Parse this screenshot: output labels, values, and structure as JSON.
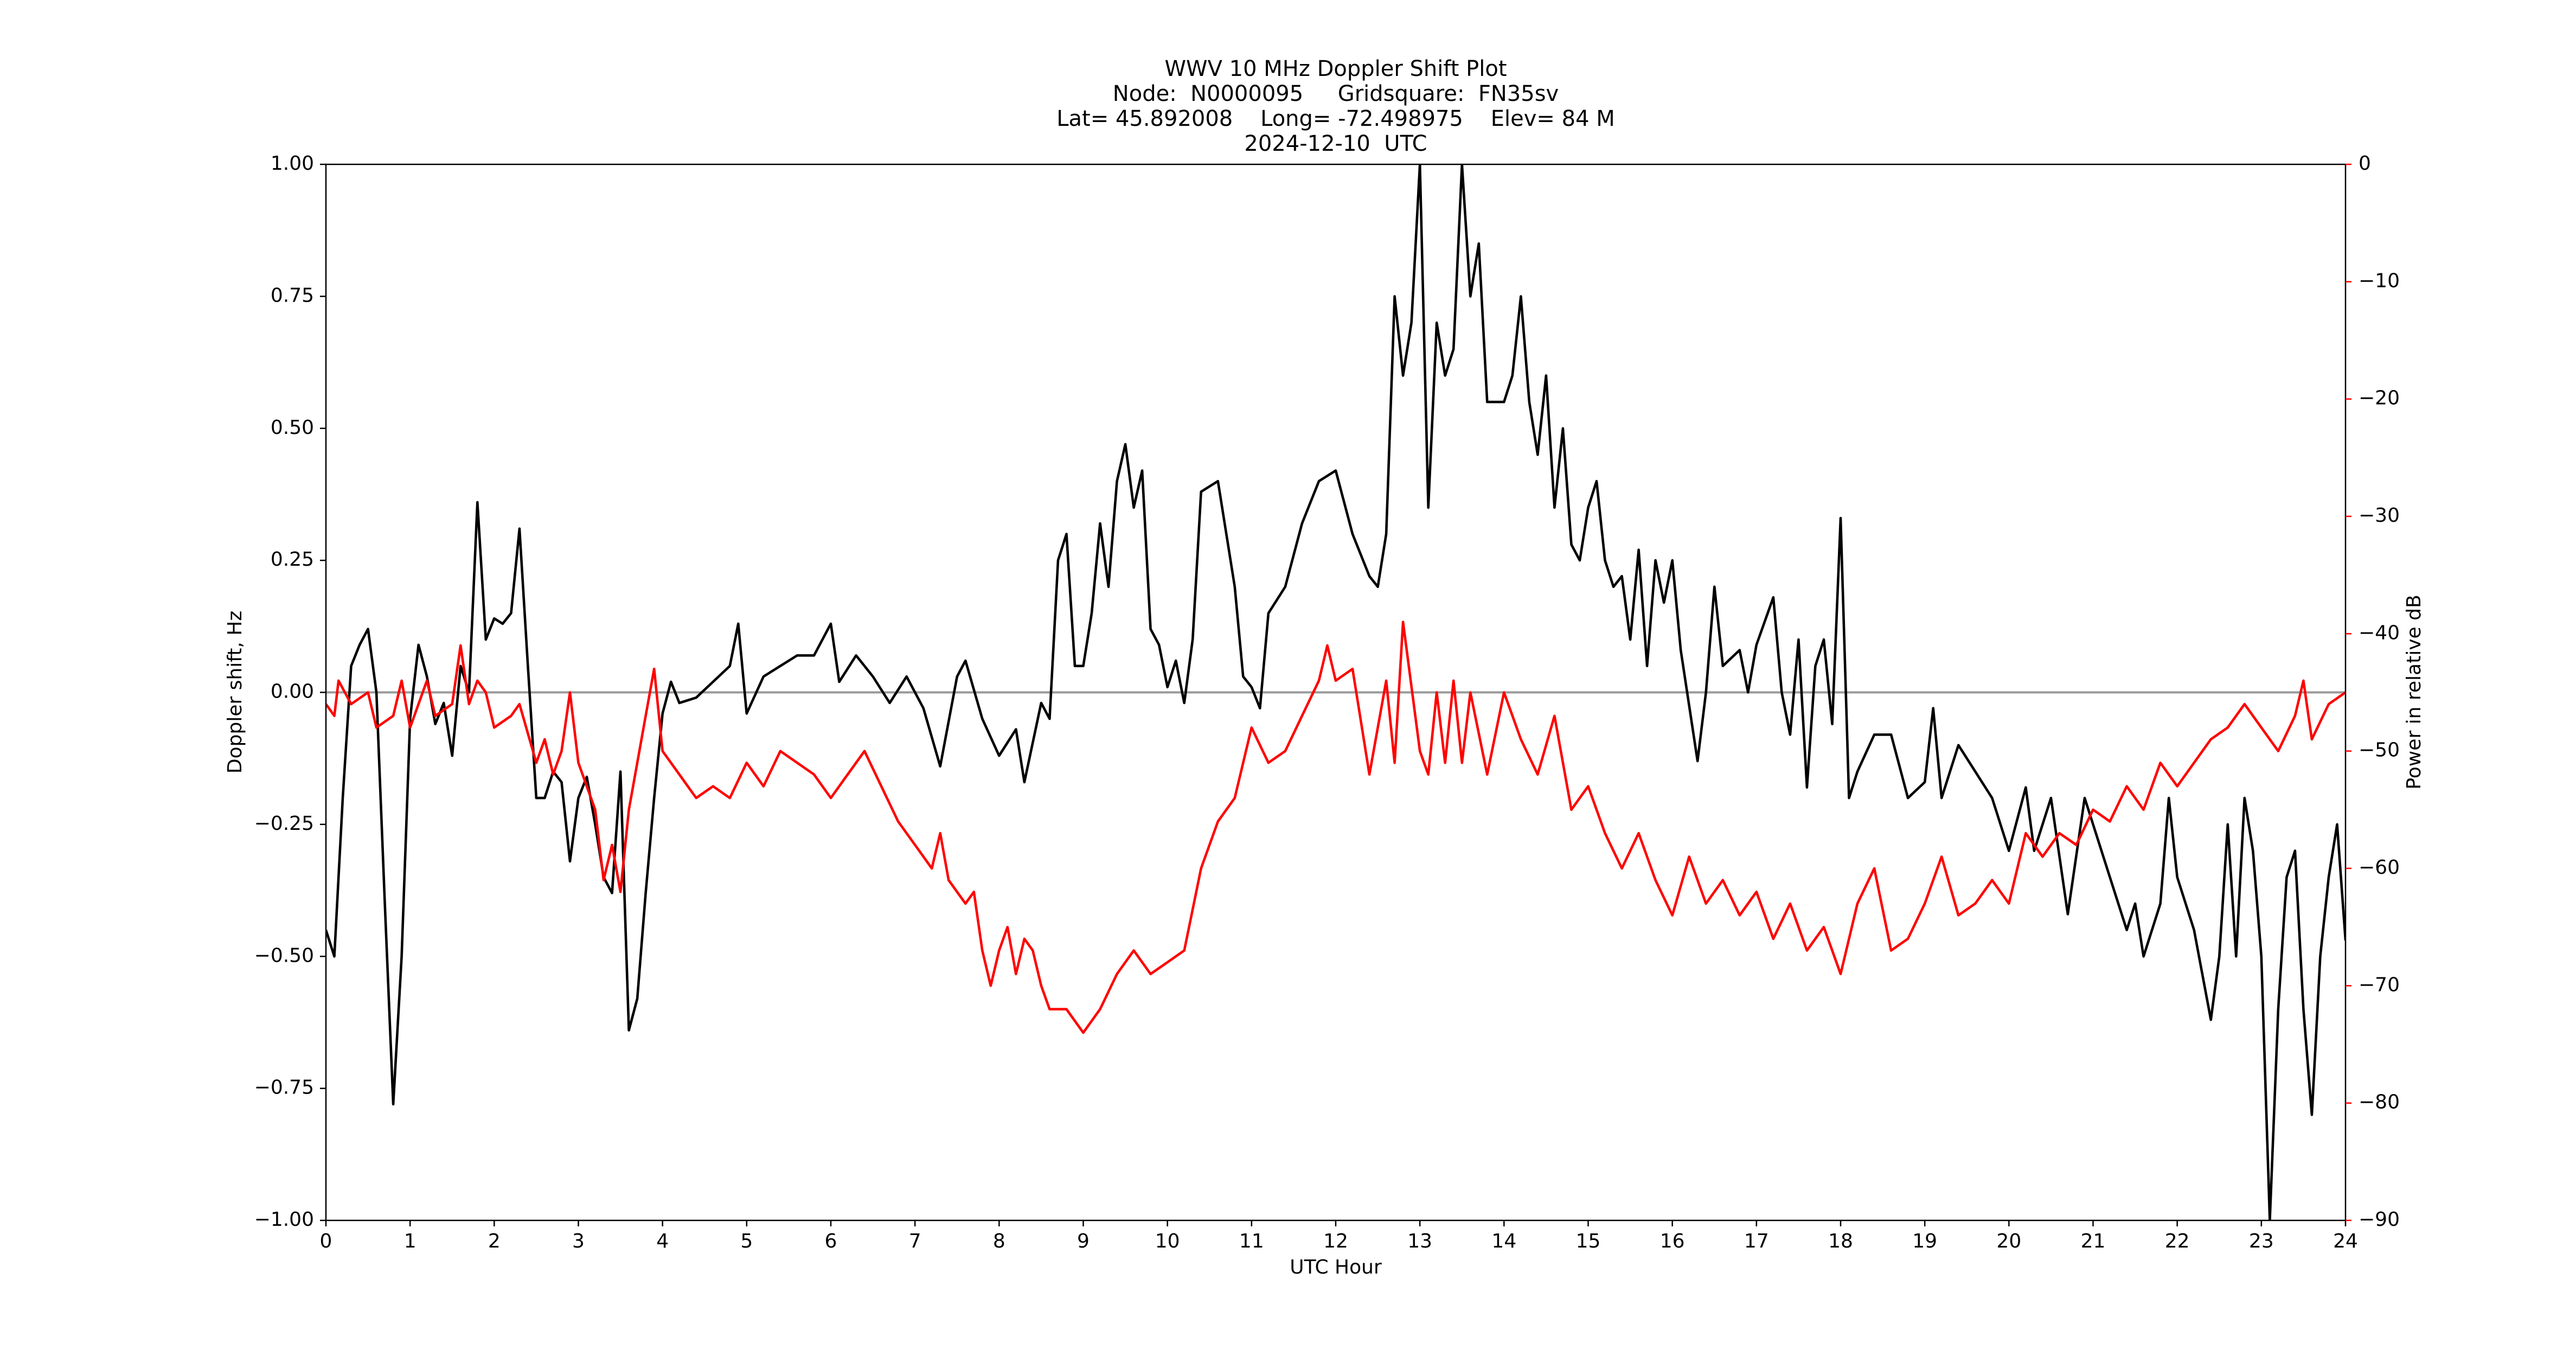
{
  "chart_data": {
    "type": "line",
    "title": [
      "WWV 10 MHz Doppler Shift Plot",
      "Node:  N0000095     Gridsquare:  FN35sv",
      "Lat= 45.892008    Long= -72.498975    Elev= 84 M",
      "2024-12-10  UTC"
    ],
    "xlabel": "UTC Hour",
    "ylabel": "Doppler shift, Hz",
    "y2label": "Power in relative dB",
    "xlim": [
      0,
      24
    ],
    "xticks": [
      0,
      1,
      2,
      3,
      4,
      5,
      6,
      7,
      8,
      9,
      10,
      11,
      12,
      13,
      14,
      15,
      16,
      17,
      18,
      19,
      20,
      21,
      22,
      23,
      24
    ],
    "ylim": [
      -1,
      1
    ],
    "yticks": [
      {
        "value": -1,
        "label": "−1.00"
      },
      {
        "value": -0.75,
        "label": "−0.75"
      },
      {
        "value": -0.5,
        "label": "−0.50"
      },
      {
        "value": -0.25,
        "label": "−0.25"
      },
      {
        "value": 0,
        "label": "0.00"
      },
      {
        "value": 0.25,
        "label": "0.25"
      },
      {
        "value": 0.5,
        "label": "0.50"
      },
      {
        "value": 0.75,
        "label": "0.75"
      },
      {
        "value": 1,
        "label": "1.00"
      }
    ],
    "y2lim": [
      -90,
      0
    ],
    "y2ticks": [
      {
        "value": -90,
        "label": "−90"
      },
      {
        "value": -80,
        "label": "−80"
      },
      {
        "value": -70,
        "label": "−70"
      },
      {
        "value": -60,
        "label": "−60"
      },
      {
        "value": -50,
        "label": "−50"
      },
      {
        "value": -40,
        "label": "−40"
      },
      {
        "value": -30,
        "label": "−30"
      },
      {
        "value": -20,
        "label": "−20"
      },
      {
        "value": -10,
        "label": "−10"
      },
      0
    ],
    "y2color": "#ff0000",
    "hline": 0,
    "hline_color": "#999999",
    "series": [
      {
        "color": "#000000",
        "axis": "y",
        "x": [
          0,
          0.1,
          0.2,
          0.3,
          0.4,
          0.5,
          0.6,
          0.7,
          0.8,
          0.9,
          1.0,
          1.1,
          1.2,
          1.3,
          1.4,
          1.5,
          1.6,
          1.7,
          1.8,
          1.9,
          2.0,
          2.1,
          2.2,
          2.3,
          2.4,
          2.5,
          2.6,
          2.7,
          2.8,
          2.9,
          3.0,
          3.1,
          3.2,
          3.3,
          3.4,
          3.5,
          3.6,
          3.7,
          3.8,
          3.9,
          4.0,
          4.1,
          4.2,
          4.4,
          4.6,
          4.8,
          4.9,
          5.0,
          5.2,
          5.4,
          5.6,
          5.8,
          6.0,
          6.1,
          6.3,
          6.5,
          6.7,
          6.9,
          7.1,
          7.3,
          7.5,
          7.6,
          7.8,
          8.0,
          8.2,
          8.3,
          8.5,
          8.6,
          8.7,
          8.8,
          8.9,
          9.0,
          9.1,
          9.2,
          9.3,
          9.4,
          9.5,
          9.6,
          9.7,
          9.8,
          9.9,
          10.0,
          10.1,
          10.2,
          10.3,
          10.4,
          10.6,
          10.8,
          10.9,
          11.0,
          11.1,
          11.2,
          11.4,
          11.6,
          11.8,
          12.0,
          12.2,
          12.4,
          12.5,
          12.6,
          12.7,
          12.8,
          12.9,
          13.0,
          13.1,
          13.2,
          13.3,
          13.4,
          13.5,
          13.6,
          13.7,
          13.8,
          13.9,
          14.0,
          14.1,
          14.2,
          14.3,
          14.4,
          14.5,
          14.6,
          14.7,
          14.8,
          14.9,
          15.0,
          15.1,
          15.2,
          15.3,
          15.4,
          15.5,
          15.6,
          15.7,
          15.8,
          15.9,
          16.0,
          16.1,
          16.3,
          16.4,
          16.5,
          16.6,
          16.8,
          16.9,
          17.0,
          17.2,
          17.3,
          17.4,
          17.5,
          17.6,
          17.7,
          17.8,
          17.9,
          18.0,
          18.1,
          18.2,
          18.4,
          18.6,
          18.8,
          19.0,
          19.1,
          19.2,
          19.4,
          19.6,
          19.8,
          20.0,
          20.2,
          20.3,
          20.5,
          20.7,
          20.9,
          21.0,
          21.2,
          21.4,
          21.5,
          21.6,
          21.8,
          21.9,
          22.0,
          22.2,
          22.4,
          22.5,
          22.6,
          22.7,
          22.8,
          22.9,
          23.0,
          23.1,
          23.2,
          23.3,
          23.4,
          23.5,
          23.6,
          23.7,
          23.8,
          23.9,
          24.0
        ],
        "values": [
          -0.45,
          -0.5,
          -0.2,
          0.05,
          0.09,
          0.12,
          0.0,
          -0.4,
          -0.78,
          -0.5,
          -0.05,
          0.09,
          0.03,
          -0.06,
          -0.02,
          -0.12,
          0.05,
          0.0,
          0.36,
          0.1,
          0.14,
          0.13,
          0.15,
          0.31,
          0.05,
          -0.2,
          -0.2,
          -0.15,
          -0.17,
          -0.32,
          -0.2,
          -0.16,
          -0.25,
          -0.35,
          -0.38,
          -0.15,
          -0.64,
          -0.58,
          -0.38,
          -0.2,
          -0.04,
          0.02,
          -0.02,
          -0.01,
          0.02,
          0.05,
          0.13,
          -0.04,
          0.03,
          0.05,
          0.07,
          0.07,
          0.13,
          0.02,
          0.07,
          0.03,
          -0.02,
          0.03,
          -0.03,
          -0.14,
          0.03,
          0.06,
          -0.05,
          -0.12,
          -0.07,
          -0.17,
          -0.02,
          -0.05,
          0.25,
          0.3,
          0.05,
          0.05,
          0.15,
          0.32,
          0.2,
          0.4,
          0.47,
          0.35,
          0.42,
          0.12,
          0.09,
          0.01,
          0.06,
          -0.02,
          0.1,
          0.38,
          0.4,
          0.2,
          0.03,
          0.01,
          -0.03,
          0.15,
          0.2,
          0.32,
          0.4,
          0.42,
          0.3,
          0.22,
          0.2,
          0.3,
          0.75,
          0.6,
          0.7,
          1.0,
          0.35,
          0.7,
          0.6,
          0.65,
          1.0,
          0.75,
          0.85,
          0.55,
          0.55,
          0.55,
          0.6,
          0.75,
          0.55,
          0.45,
          0.6,
          0.35,
          0.5,
          0.28,
          0.25,
          0.35,
          0.4,
          0.25,
          0.2,
          0.22,
          0.1,
          0.27,
          0.05,
          0.25,
          0.17,
          0.25,
          0.08,
          -0.13,
          0.0,
          0.2,
          0.05,
          0.08,
          0.0,
          0.09,
          0.18,
          0.0,
          -0.08,
          0.1,
          -0.18,
          0.05,
          0.1,
          -0.06,
          0.33,
          -0.2,
          -0.15,
          -0.08,
          -0.08,
          -0.2,
          -0.17,
          -0.03,
          -0.2,
          -0.1,
          -0.15,
          -0.2,
          -0.3,
          -0.18,
          -0.3,
          -0.2,
          -0.42,
          -0.2,
          -0.25,
          -0.35,
          -0.45,
          -0.4,
          -0.5,
          -0.4,
          -0.2,
          -0.35,
          -0.45,
          -0.62,
          -0.5,
          -0.25,
          -0.5,
          -0.2,
          -0.3,
          -0.5,
          -1.0,
          -0.6,
          -0.35,
          -0.3,
          -0.6,
          -0.8,
          -0.5,
          -0.35,
          -0.25,
          -0.47
        ]
      },
      {
        "color": "#ff0000",
        "axis": "y2",
        "x": [
          0,
          0.1,
          0.15,
          0.3,
          0.5,
          0.6,
          0.8,
          0.9,
          1.0,
          1.1,
          1.2,
          1.3,
          1.5,
          1.6,
          1.7,
          1.8,
          1.9,
          2.0,
          2.2,
          2.3,
          2.5,
          2.6,
          2.7,
          2.8,
          2.9,
          3.0,
          3.2,
          3.3,
          3.4,
          3.5,
          3.6,
          3.8,
          3.9,
          4.0,
          4.2,
          4.4,
          4.6,
          4.8,
          5.0,
          5.2,
          5.4,
          5.6,
          5.8,
          6.0,
          6.2,
          6.4,
          6.6,
          6.8,
          7.0,
          7.2,
          7.3,
          7.4,
          7.6,
          7.7,
          7.8,
          7.9,
          8.0,
          8.1,
          8.2,
          8.3,
          8.4,
          8.5,
          8.6,
          8.8,
          9.0,
          9.1,
          9.2,
          9.4,
          9.6,
          9.8,
          10.0,
          10.2,
          10.4,
          10.6,
          10.8,
          11.0,
          11.2,
          11.4,
          11.6,
          11.8,
          11.9,
          12.0,
          12.2,
          12.4,
          12.5,
          12.6,
          12.7,
          12.8,
          13.0,
          13.1,
          13.2,
          13.3,
          13.4,
          13.5,
          13.6,
          13.8,
          14.0,
          14.2,
          14.4,
          14.6,
          14.8,
          15.0,
          15.2,
          15.4,
          15.6,
          15.8,
          16.0,
          16.2,
          16.4,
          16.6,
          16.8,
          17.0,
          17.2,
          17.4,
          17.6,
          17.8,
          18.0,
          18.2,
          18.4,
          18.6,
          18.8,
          19.0,
          19.2,
          19.4,
          19.6,
          19.8,
          20.0,
          20.2,
          20.4,
          20.6,
          20.8,
          21.0,
          21.2,
          21.4,
          21.6,
          21.8,
          22.0,
          22.2,
          22.4,
          22.6,
          22.8,
          23.0,
          23.2,
          23.4,
          23.5,
          23.6,
          23.8,
          24.0
        ],
        "values": [
          -46,
          -47,
          -44,
          -46,
          -45,
          -48,
          -47,
          -44,
          -48,
          -46,
          -44,
          -47,
          -46,
          -41,
          -46,
          -44,
          -45,
          -48,
          -47,
          -46,
          -51,
          -49,
          -52,
          -50,
          -45,
          -51,
          -55,
          -61,
          -58,
          -62,
          -55,
          -47,
          -43,
          -50,
          -52,
          -54,
          -53,
          -54,
          -51,
          -53,
          -50,
          -51,
          -52,
          -54,
          -52,
          -50,
          -53,
          -56,
          -58,
          -60,
          -57,
          -61,
          -63,
          -62,
          -67,
          -70,
          -67,
          -65,
          -69,
          -66,
          -67,
          -70,
          -72,
          -72,
          -74,
          -73,
          -72,
          -69,
          -67,
          -69,
          -68,
          -67,
          -60,
          -56,
          -54,
          -48,
          -51,
          -50,
          -47,
          -44,
          -41,
          -44,
          -43,
          -52,
          -48,
          -44,
          -51,
          -39,
          -50,
          -52,
          -45,
          -51,
          -44,
          -51,
          -45,
          -52,
          -45,
          -49,
          -52,
          -47,
          -55,
          -53,
          -57,
          -60,
          -57,
          -61,
          -64,
          -59,
          -63,
          -61,
          -64,
          -62,
          -66,
          -63,
          -67,
          -65,
          -69,
          -63,
          -60,
          -67,
          -66,
          -63,
          -59,
          -64,
          -63,
          -61,
          -63,
          -57,
          -59,
          -57,
          -58,
          -55,
          -56,
          -53,
          -55,
          -51,
          -53,
          -51,
          -49,
          -48,
          -46,
          -48,
          -50,
          -47,
          -44,
          -49,
          -46,
          -45
        ]
      }
    ]
  }
}
